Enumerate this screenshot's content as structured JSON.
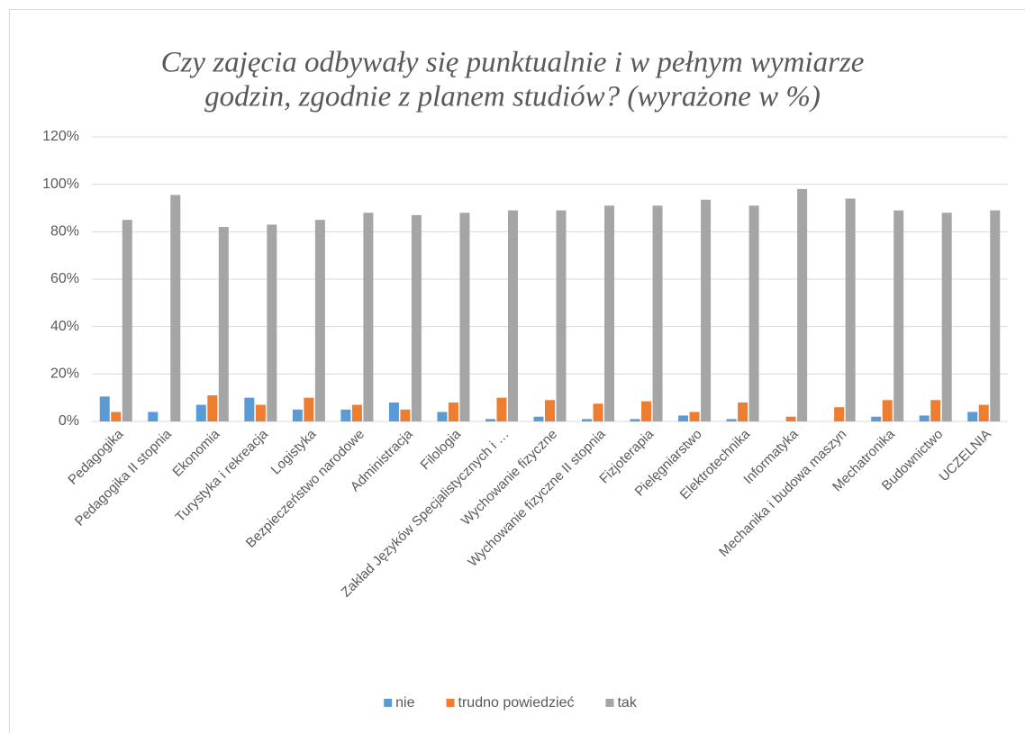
{
  "chart_data": {
    "type": "bar",
    "title": [
      "Czy zajęcia odbywały się punktualnie i w pełnym wymiarze",
      "godzin, zgodnie z planem studiów? (wyrażone w %)"
    ],
    "categories": [
      "Pedagogika",
      "Pedagogika II stopnia",
      "Ekonomia",
      "Turystyka i rekreacja",
      "Logistyka",
      "Bezpieczeństwo narodowe",
      "Administracja",
      "Filologia",
      "Zakład Języków Specjalistycznych i …",
      "Wychowanie fizyczne",
      "Wychowanie fizyczne II stopnia",
      "Fizjoterapia",
      "Pielęgniarstwo",
      "Elektrotechnika",
      "Informatyka",
      "Mechanika i budowa maszyn",
      "Mechatronika",
      "Budownictwo",
      "UCZELNIA"
    ],
    "series": [
      {
        "name": "nie",
        "color": "#5b9bd5",
        "values": [
          10.5,
          4,
          7,
          10,
          5,
          5,
          8,
          4,
          1,
          2,
          1,
          1,
          2.5,
          1,
          0,
          0,
          2,
          2.5,
          4
        ]
      },
      {
        "name": "trudno powiedzieć",
        "color": "#ed7d31",
        "values": [
          4,
          0,
          11,
          7,
          10,
          7,
          5,
          8,
          10,
          9,
          7.5,
          8.5,
          4,
          8,
          2,
          6,
          9,
          9,
          7
        ]
      },
      {
        "name": "tak",
        "color": "#a5a5a5",
        "values": [
          85,
          95.5,
          82,
          83,
          85,
          88,
          87,
          88,
          89,
          89,
          91,
          91,
          93.5,
          91,
          98,
          94,
          89,
          88,
          89
        ]
      }
    ],
    "ylim": [
      0,
      120
    ],
    "yticks": [
      {
        "value": 0,
        "label": "0%"
      },
      {
        "value": 20,
        "label": "20%"
      },
      {
        "value": 40,
        "label": "40%"
      },
      {
        "value": 60,
        "label": "60%"
      },
      {
        "value": 80,
        "label": "80%"
      },
      {
        "value": 100,
        "label": "100%"
      },
      {
        "value": 120,
        "label": "120%"
      }
    ],
    "grid": true,
    "legend": "bottom"
  }
}
